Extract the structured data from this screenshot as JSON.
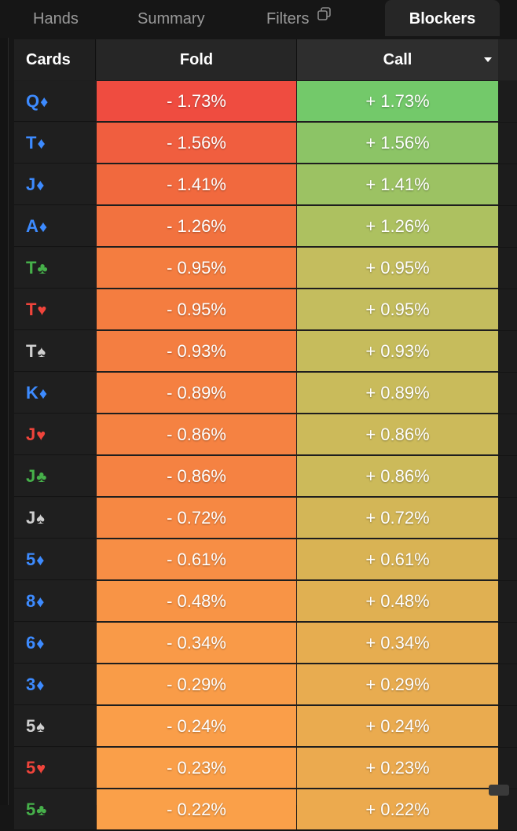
{
  "tabs": [
    {
      "label": "Hands",
      "active": false
    },
    {
      "label": "Summary",
      "active": false
    },
    {
      "label": "Filters",
      "active": false
    },
    {
      "label": "Blockers",
      "active": true
    }
  ],
  "table": {
    "columns": {
      "cards": "Cards",
      "fold": "Fold",
      "call": "Call"
    },
    "sort_column": "Call",
    "rows": [
      {
        "rank": "Q",
        "suit": "♦",
        "suit_color": "#3d8bff",
        "fold": "- 1.73%",
        "call": "+ 1.73%",
        "fold_bg": "#ef4c40",
        "call_bg": "#73c96a"
      },
      {
        "rank": "T",
        "suit": "♦",
        "suit_color": "#3d8bff",
        "fold": "- 1.56%",
        "call": "+ 1.56%",
        "fold_bg": "#f05e3f",
        "call_bg": "#8cc466"
      },
      {
        "rank": "J",
        "suit": "♦",
        "suit_color": "#3d8bff",
        "fold": "- 1.41%",
        "call": "+ 1.41%",
        "fold_bg": "#f1693e",
        "call_bg": "#9cc263"
      },
      {
        "rank": "A",
        "suit": "♦",
        "suit_color": "#3d8bff",
        "fold": "- 1.26%",
        "call": "+ 1.26%",
        "fold_bg": "#f2723f",
        "call_bg": "#adc160"
      },
      {
        "rank": "T",
        "suit": "♣",
        "suit_color": "#46b04a",
        "fold": "- 0.95%",
        "call": "+ 0.95%",
        "fold_bg": "#f47d40",
        "call_bg": "#c4bd5e"
      },
      {
        "rank": "T",
        "suit": "♥",
        "suit_color": "#f0443b",
        "fold": "- 0.95%",
        "call": "+ 0.95%",
        "fold_bg": "#f47d40",
        "call_bg": "#c4bd5e"
      },
      {
        "rank": "T",
        "suit": "♠",
        "suit_color": "#cfcfcf",
        "fold": "- 0.93%",
        "call": "+ 0.93%",
        "fold_bg": "#f47e41",
        "call_bg": "#c6bc5c"
      },
      {
        "rank": "K",
        "suit": "♦",
        "suit_color": "#3d8bff",
        "fold": "- 0.89%",
        "call": "+ 0.89%",
        "fold_bg": "#f58041",
        "call_bg": "#c9bb5b"
      },
      {
        "rank": "J",
        "suit": "♥",
        "suit_color": "#f0443b",
        "fold": "- 0.86%",
        "call": "+ 0.86%",
        "fold_bg": "#f58242",
        "call_bg": "#ccba5a"
      },
      {
        "rank": "J",
        "suit": "♣",
        "suit_color": "#46b04a",
        "fold": "- 0.86%",
        "call": "+ 0.86%",
        "fold_bg": "#f58242",
        "call_bg": "#ccba5a"
      },
      {
        "rank": "J",
        "suit": "♠",
        "suit_color": "#cfcfcf",
        "fold": "- 0.72%",
        "call": "+ 0.72%",
        "fold_bg": "#f68843",
        "call_bg": "#d3b657"
      },
      {
        "rank": "5",
        "suit": "♦",
        "suit_color": "#3d8bff",
        "fold": "- 0.61%",
        "call": "+ 0.61%",
        "fold_bg": "#f78e45",
        "call_bg": "#d9b354"
      },
      {
        "rank": "8",
        "suit": "♦",
        "suit_color": "#3d8bff",
        "fold": "- 0.48%",
        "call": "+ 0.48%",
        "fold_bg": "#f89446",
        "call_bg": "#e0b052"
      },
      {
        "rank": "6",
        "suit": "♦",
        "suit_color": "#3d8bff",
        "fold": "- 0.34%",
        "call": "+ 0.34%",
        "fold_bg": "#f99a48",
        "call_bg": "#e6ad50"
      },
      {
        "rank": "3",
        "suit": "♦",
        "suit_color": "#3d8bff",
        "fold": "- 0.29%",
        "call": "+ 0.29%",
        "fold_bg": "#f99c48",
        "call_bg": "#e8ac50"
      },
      {
        "rank": "5",
        "suit": "♠",
        "suit_color": "#cfcfcf",
        "fold": "- 0.24%",
        "call": "+ 0.24%",
        "fold_bg": "#fa9e49",
        "call_bg": "#eaab4f"
      },
      {
        "rank": "5",
        "suit": "♥",
        "suit_color": "#f0443b",
        "fold": "- 0.23%",
        "call": "+ 0.23%",
        "fold_bg": "#fa9f49",
        "call_bg": "#ebaa4f"
      },
      {
        "rank": "5",
        "suit": "♣",
        "suit_color": "#46b04a",
        "fold": "- 0.22%",
        "call": "+ 0.22%",
        "fold_bg": "#faa049",
        "call_bg": "#ecaa4e"
      }
    ]
  },
  "icons": {
    "filters_tab": "copy-icon",
    "call_column": "sort-caret-down-icon"
  },
  "colors": {
    "background": "#161616",
    "active_tab": "#262626",
    "diamond": "#3d8bff",
    "club": "#46b04a",
    "heart": "#f0443b",
    "spade": "#cfcfcf"
  }
}
